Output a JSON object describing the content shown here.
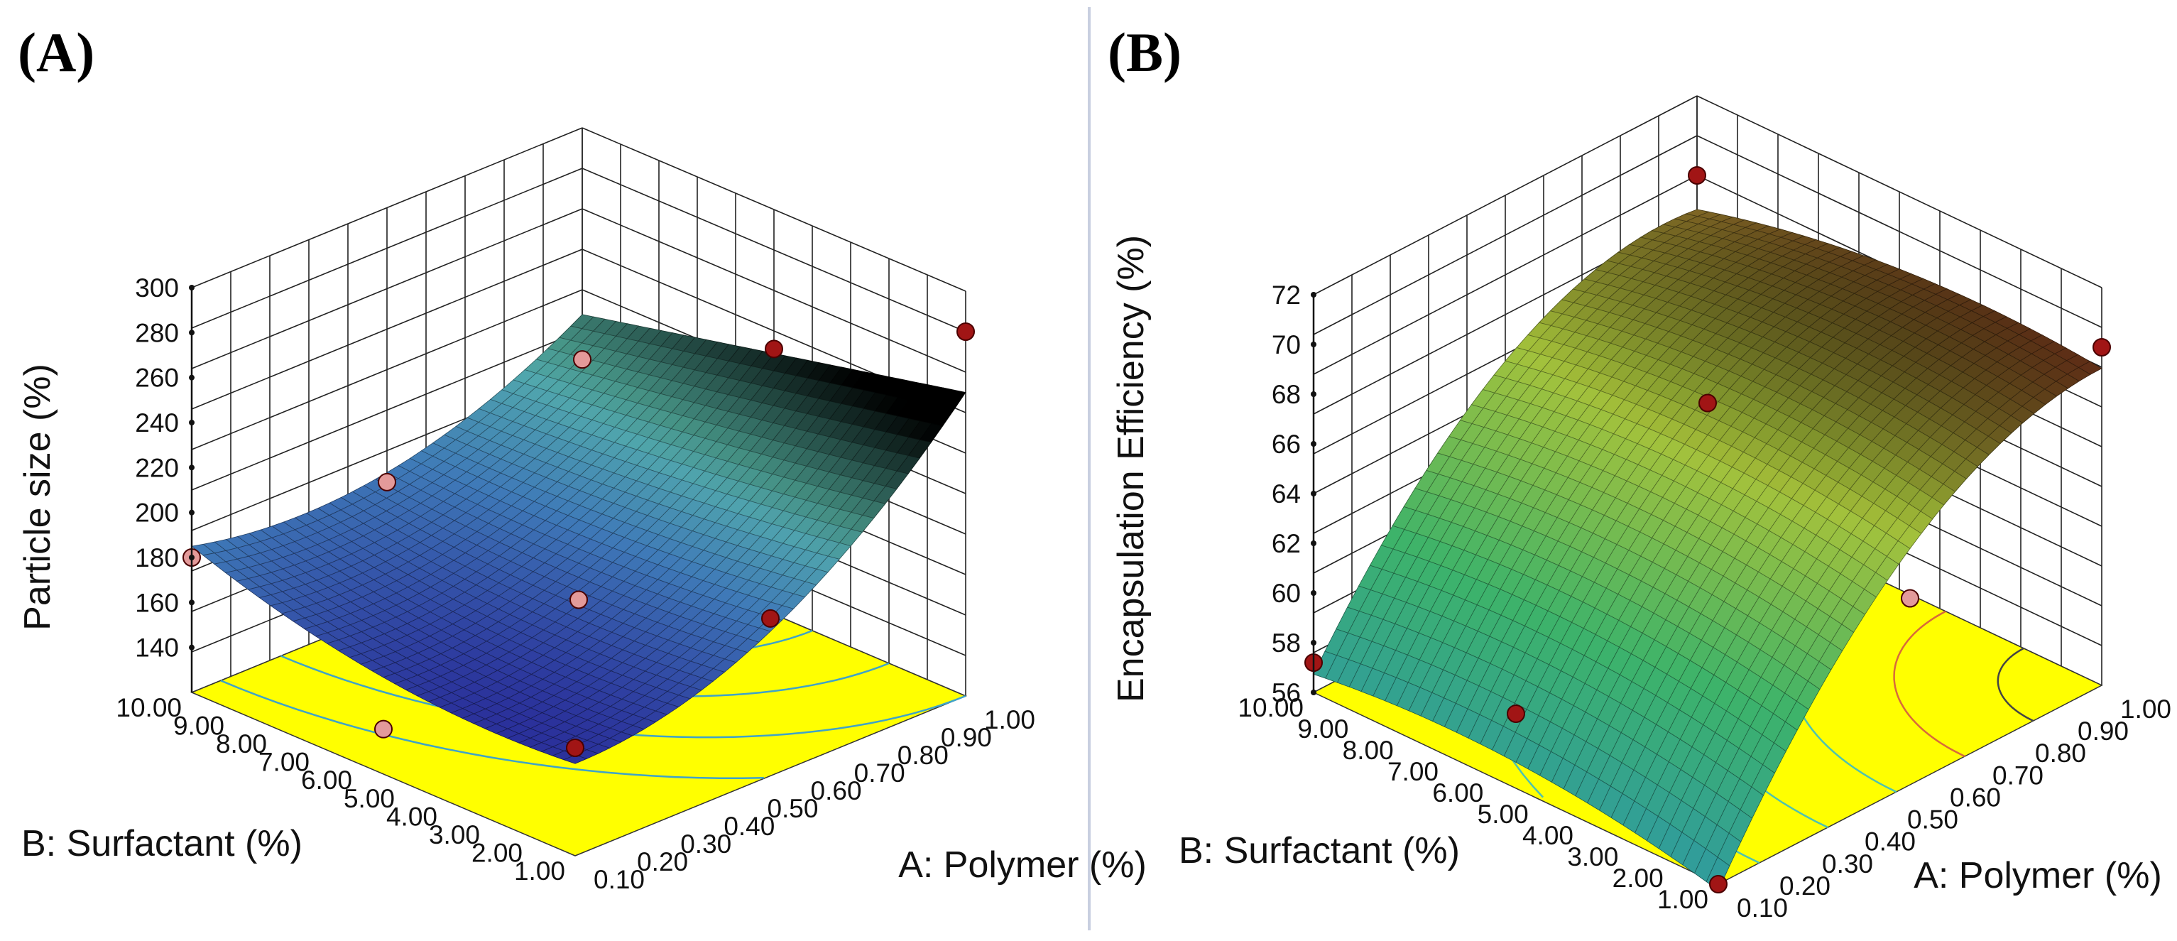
{
  "chart_data": [
    {
      "type": "surface3d",
      "panel_label": "(A)",
      "xlabel": "A: Polymer (%)",
      "ylabel": "B: Surfactant (%)",
      "zlabel": "Particle size (%)",
      "x_ticks": [
        "0.10",
        "0.20",
        "0.30",
        "0.40",
        "0.50",
        "0.60",
        "0.70",
        "0.80",
        "0.90",
        "1.00"
      ],
      "y_ticks": [
        "1.00",
        "2.00",
        "3.00",
        "4.00",
        "5.00",
        "6.00",
        "7.00",
        "8.00",
        "9.00",
        "10.00"
      ],
      "z_ticks": [
        "140",
        "160",
        "180",
        "200",
        "220",
        "240",
        "260",
        "280",
        "300"
      ],
      "xlim": [
        0.1,
        1.0
      ],
      "ylim": [
        1.0,
        10.0
      ],
      "zlim": [
        120,
        300
      ],
      "surface_colors": [
        "#2a2f9a",
        "#3f7ab8",
        "#58b9a8",
        "#1b2a3a",
        "#000000"
      ],
      "floor_color": "#ffff00",
      "contour_color": "#3fa3c8",
      "design_points": [
        {
          "x": 0.1,
          "y": 1.0,
          "z": 168
        },
        {
          "x": 0.1,
          "y": 10.0,
          "z": 180
        },
        {
          "x": 1.0,
          "y": 1.0,
          "z": 282
        },
        {
          "x": 1.0,
          "y": 10.0,
          "z": 197
        },
        {
          "x": 0.55,
          "y": 5.5,
          "z": 162
        },
        {
          "x": 0.1,
          "y": 5.5,
          "z": 140
        },
        {
          "x": 1.0,
          "y": 5.5,
          "z": 238
        },
        {
          "x": 0.55,
          "y": 1.0,
          "z": 190
        },
        {
          "x": 0.55,
          "y": 10.0,
          "z": 178
        }
      ]
    },
    {
      "type": "surface3d",
      "panel_label": "(B)",
      "xlabel": "A: Polymer (%)",
      "ylabel": "B: Surfactant (%)",
      "zlabel": "Encapsulation Efficiency (%)",
      "x_ticks": [
        "0.10",
        "0.20",
        "0.30",
        "0.40",
        "0.50",
        "0.60",
        "0.70",
        "0.80",
        "0.90",
        "1.00"
      ],
      "y_ticks": [
        "1.00",
        "2.00",
        "3.00",
        "4.00",
        "5.00",
        "6.00",
        "7.00",
        "8.00",
        "9.00",
        "10.00"
      ],
      "z_ticks": [
        "56",
        "58",
        "60",
        "62",
        "64",
        "66",
        "68",
        "70",
        "72"
      ],
      "xlim": [
        0.1,
        1.0
      ],
      "ylim": [
        1.0,
        10.0
      ],
      "zlim": [
        56,
        72
      ],
      "surface_colors": [
        "#2f9aa0",
        "#3db36a",
        "#a7c23a",
        "#1a1a1a",
        "#b02020"
      ],
      "floor_color": "#ffff00",
      "contour_color": "#4ec2b0",
      "design_points": [
        {
          "x": 0.1,
          "y": 1.0,
          "z": 56.0
        },
        {
          "x": 0.1,
          "y": 10.0,
          "z": 57.2
        },
        {
          "x": 1.0,
          "y": 1.0,
          "z": 69.6
        },
        {
          "x": 1.0,
          "y": 10.0,
          "z": 68.8
        },
        {
          "x": 0.55,
          "y": 5.5,
          "z": 67.5
        },
        {
          "x": 0.55,
          "y": 1.0,
          "z": 63.5
        },
        {
          "x": 0.1,
          "y": 5.5,
          "z": 59.0
        }
      ]
    }
  ]
}
